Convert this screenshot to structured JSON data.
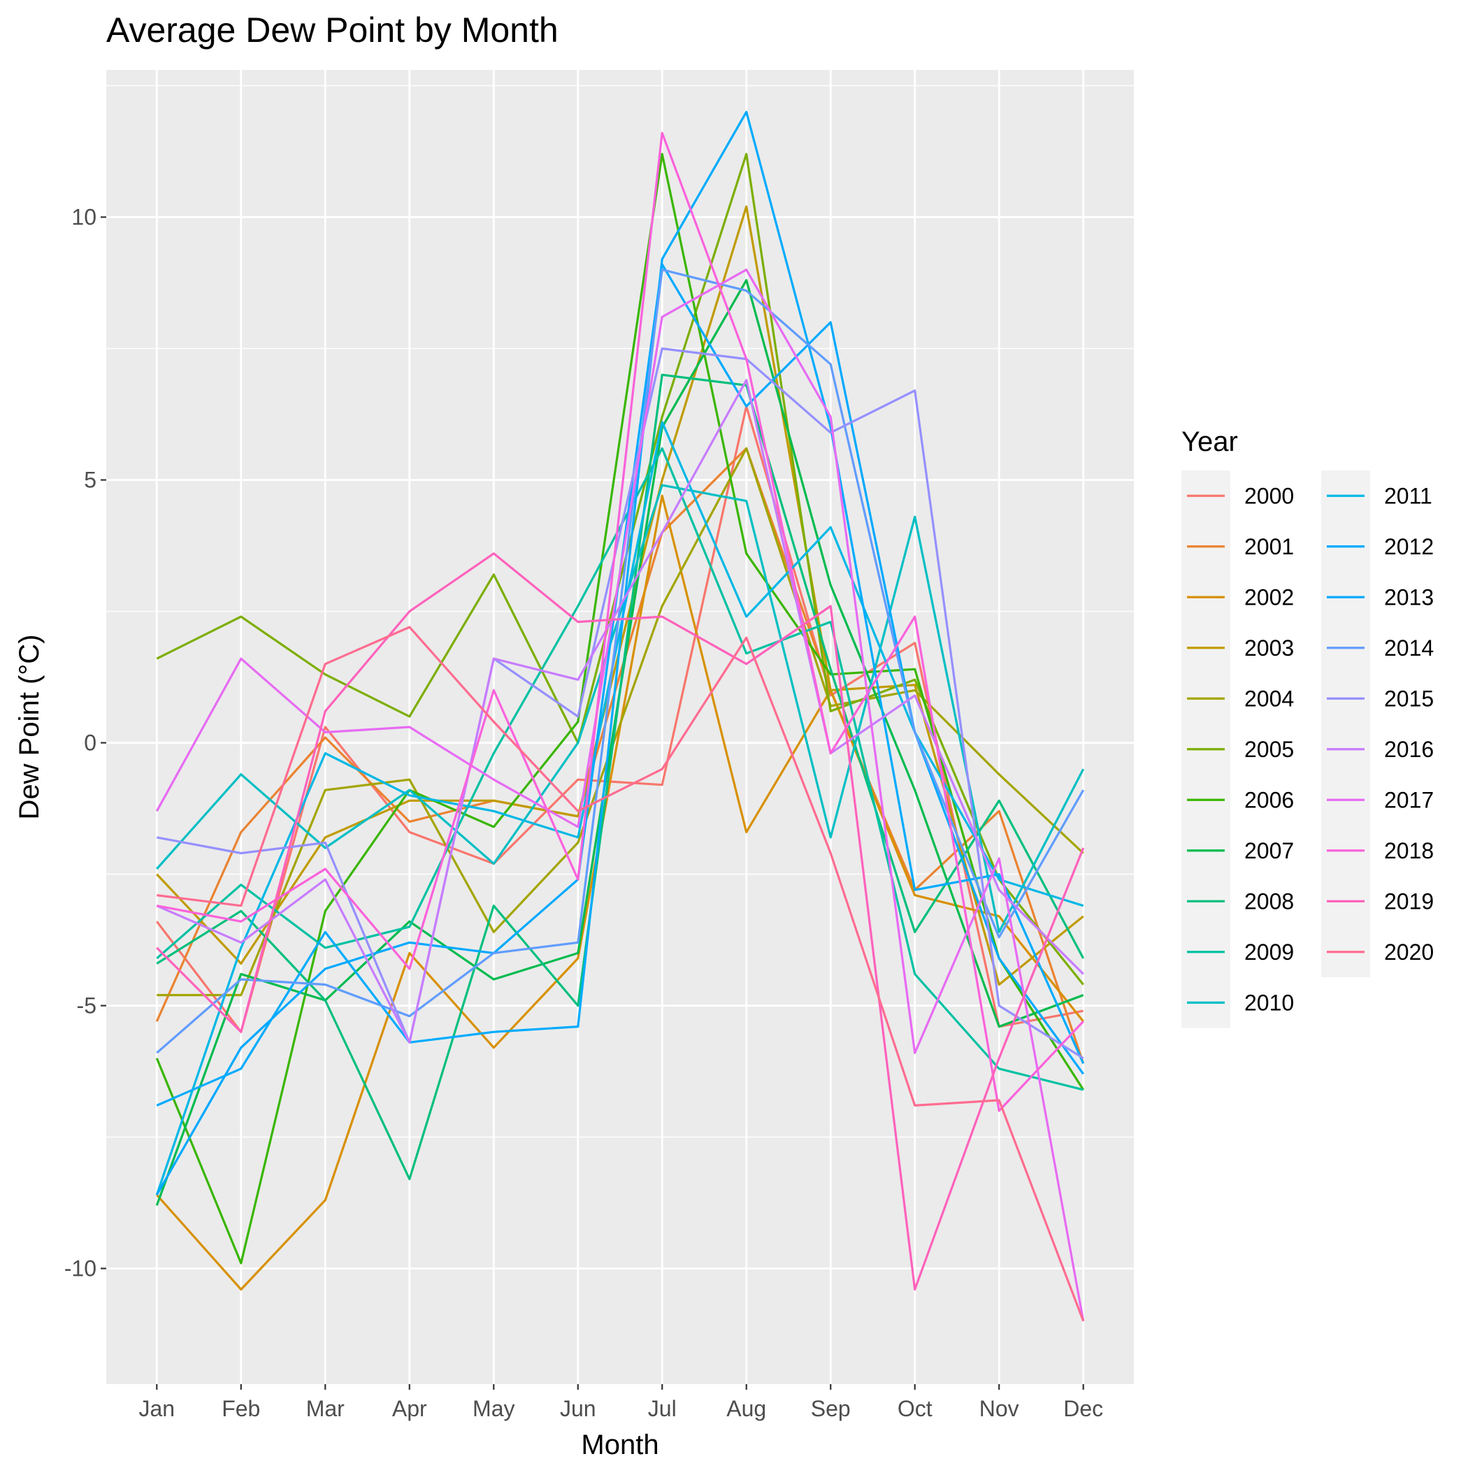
{
  "chart_data": {
    "type": "line",
    "title": "Average Dew Point by Month",
    "xlabel": "Month",
    "ylabel": "Dew Point (°C)",
    "categories": [
      "Jan",
      "Feb",
      "Mar",
      "Apr",
      "May",
      "Jun",
      "Jul",
      "Aug",
      "Sep",
      "Oct",
      "Nov",
      "Dec"
    ],
    "ylim": [
      -12.2,
      12.8
    ],
    "yticks": [
      -10,
      -5,
      0,
      5,
      10
    ],
    "ytick_labels": [
      "-10",
      "-5",
      "0",
      "5",
      "10"
    ],
    "grid": true,
    "panel_background": "#ebebeb",
    "grid_color": "#ffffff",
    "legend": {
      "title": "Year",
      "position": "right",
      "columns": 2
    },
    "series": [
      {
        "name": "2000",
        "color": "#F8766D",
        "values": [
          -3.4,
          -5.5,
          0.3,
          -1.7,
          -2.3,
          -0.7,
          -0.8,
          6.4,
          0.9,
          1.9,
          -5.4,
          -5.1
        ]
      },
      {
        "name": "2001",
        "color": "#EA8331",
        "values": [
          -5.3,
          -1.7,
          0.1,
          -1.5,
          -1.1,
          -1.4,
          4.0,
          5.6,
          1.0,
          -2.8,
          -1.3,
          -6.1
        ]
      },
      {
        "name": "2002",
        "color": "#D89000",
        "values": [
          -8.6,
          -10.4,
          -8.7,
          -4.0,
          -5.8,
          -4.1,
          4.7,
          -1.7,
          1.0,
          -2.9,
          -3.3,
          -5.3
        ]
      },
      {
        "name": "2003",
        "color": "#C09B00",
        "values": [
          -2.5,
          -4.2,
          -1.8,
          -1.1,
          -1.1,
          -1.4,
          5.0,
          10.2,
          1.0,
          1.1,
          -4.6,
          -3.3
        ]
      },
      {
        "name": "2004",
        "color": "#A3A500",
        "values": [
          -4.8,
          -4.8,
          -0.9,
          -0.7,
          -3.6,
          -1.9,
          2.6,
          5.6,
          0.7,
          1.0,
          -0.6,
          -2.1
        ]
      },
      {
        "name": "2005",
        "color": "#7CAE00",
        "values": [
          1.6,
          2.4,
          1.3,
          0.5,
          3.2,
          0.0,
          6.2,
          11.2,
          0.6,
          1.2,
          -2.6,
          -4.6
        ]
      },
      {
        "name": "2006",
        "color": "#39B600",
        "values": [
          -6.0,
          -9.9,
          -3.2,
          -0.9,
          -1.6,
          0.4,
          11.2,
          3.6,
          1.3,
          1.4,
          -4.1,
          -6.6
        ]
      },
      {
        "name": "2007",
        "color": "#00BB4E",
        "values": [
          -8.8,
          -4.4,
          -4.9,
          -3.4,
          -4.5,
          -4.0,
          6.0,
          8.8,
          3.0,
          -0.9,
          -5.4,
          -4.8
        ]
      },
      {
        "name": "2008",
        "color": "#00BF7D",
        "values": [
          -4.2,
          -3.2,
          -4.9,
          -8.3,
          -3.1,
          -5.0,
          7.0,
          6.8,
          1.4,
          -3.6,
          -1.1,
          -4.1
        ]
      },
      {
        "name": "2009",
        "color": "#00C1A3",
        "values": [
          -4.1,
          -2.7,
          -3.9,
          -3.5,
          -0.2,
          2.6,
          5.6,
          1.7,
          2.3,
          -4.4,
          -6.2,
          -6.6
        ]
      },
      {
        "name": "2010",
        "color": "#00BFC4",
        "values": [
          -2.4,
          -0.6,
          -2.0,
          -0.9,
          -2.3,
          0.0,
          4.9,
          4.6,
          -1.8,
          4.3,
          -3.6,
          -0.5
        ]
      },
      {
        "name": "2011",
        "color": "#00B8E5",
        "values": [
          -8.6,
          -3.9,
          -0.2,
          -1.0,
          -1.3,
          -1.8,
          6.1,
          2.4,
          4.1,
          0.2,
          -2.6,
          -3.1
        ]
      },
      {
        "name": "2012",
        "color": "#00ABFD",
        "values": [
          -6.9,
          -6.2,
          -3.6,
          -5.7,
          -5.5,
          -5.4,
          9.2,
          12.0,
          6.0,
          -2.8,
          -2.5,
          -6.1
        ]
      },
      {
        "name": "2013",
        "color": "#00A9FF",
        "values": [
          -8.6,
          -5.8,
          -4.3,
          -3.8,
          -4.0,
          -2.6,
          9.1,
          6.4,
          8.0,
          0.2,
          -4.1,
          -6.3
        ]
      },
      {
        "name": "2014",
        "color": "#619CFF",
        "values": [
          -5.9,
          -4.5,
          -4.6,
          -5.2,
          -4.0,
          -3.8,
          9.0,
          8.6,
          7.2,
          0.2,
          -3.7,
          -0.9
        ]
      },
      {
        "name": "2015",
        "color": "#9590FF",
        "values": [
          -1.8,
          -2.1,
          -1.9,
          -5.7,
          1.6,
          0.5,
          7.5,
          7.3,
          5.9,
          6.7,
          -5.0,
          -6.0
        ]
      },
      {
        "name": "2016",
        "color": "#C77CFF",
        "values": [
          -3.1,
          -3.8,
          -2.6,
          -5.7,
          1.6,
          1.2,
          4.0,
          6.9,
          -0.2,
          0.9,
          -2.8,
          -4.4
        ]
      },
      {
        "name": "2017",
        "color": "#E76BF3",
        "values": [
          -1.3,
          1.6,
          0.2,
          0.3,
          -0.7,
          -1.6,
          8.1,
          9.0,
          6.2,
          -5.9,
          -2.2,
          -11.0
        ]
      },
      {
        "name": "2018",
        "color": "#FA62DB",
        "values": [
          -3.1,
          -3.4,
          -2.4,
          -4.3,
          1.0,
          -2.6,
          11.6,
          7.3,
          -0.2,
          2.4,
          -7.0,
          -5.3
        ]
      },
      {
        "name": "2019",
        "color": "#FF62BC",
        "values": [
          -3.9,
          -5.5,
          0.6,
          2.5,
          3.6,
          2.3,
          2.4,
          1.5,
          2.6,
          -10.4,
          -6.0,
          -2.0
        ]
      },
      {
        "name": "2020",
        "color": "#FF6C90",
        "values": [
          -2.9,
          -3.1,
          1.5,
          2.2,
          0.4,
          -1.3,
          -0.5,
          2.0,
          -2.1,
          -6.9,
          -6.8,
          -11.0
        ]
      }
    ]
  }
}
